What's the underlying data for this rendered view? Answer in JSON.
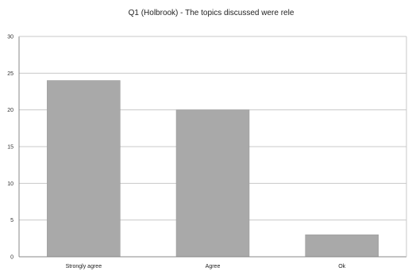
{
  "chart_data": {
    "type": "bar",
    "title": "Q1  (Holbrook)  -  The  topics  discussed  were  rele",
    "xlabel": "",
    "ylabel": "",
    "categories": [
      "Strongly agree",
      "Agree",
      "Ok"
    ],
    "values": [
      24,
      20,
      3
    ],
    "ylim": [
      0,
      30
    ],
    "yticks": [
      0,
      5,
      10,
      15,
      20,
      25,
      30
    ],
    "grid": true,
    "legend": "none",
    "colors": {
      "bar": "#a9a9a9",
      "bar_edge": "#9a9a9a",
      "grid": "#c8c8c8",
      "axis": "#888888"
    }
  }
}
